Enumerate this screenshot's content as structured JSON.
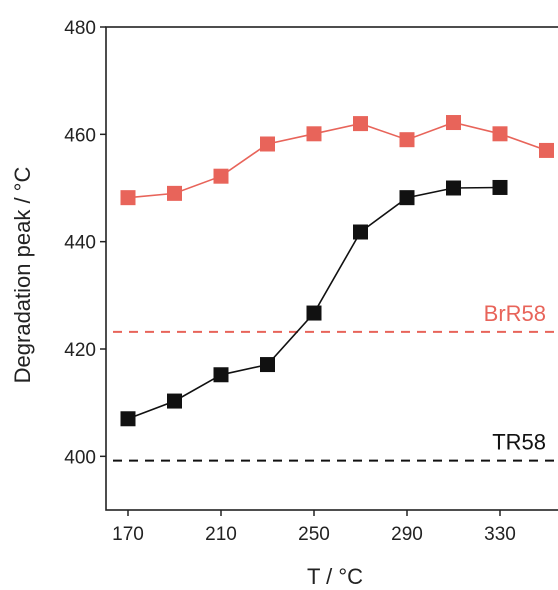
{
  "chart_data": {
    "type": "line",
    "title": "",
    "xlabel": "T / °C",
    "ylabel": "Degradation peak / °C",
    "xlim": [
      160,
      360
    ],
    "ylim": [
      390,
      480
    ],
    "xticks": [
      170,
      210,
      250,
      290,
      330
    ],
    "yticks": [
      400,
      420,
      440,
      460,
      480
    ],
    "grid": false,
    "series": [
      {
        "name": "",
        "color": "#e8645a",
        "marker": "square",
        "x": [
          170,
          190,
          210,
          230,
          250,
          270,
          290,
          310,
          330,
          350
        ],
        "y": [
          448.2,
          449.0,
          452.2,
          458.2,
          460.1,
          462.0,
          459.0,
          462.2,
          460.1,
          457.0
        ]
      },
      {
        "name": "",
        "color": "#111111",
        "marker": "square",
        "x": [
          170,
          190,
          210,
          230,
          250,
          270,
          290,
          310,
          330
        ],
        "y": [
          407.0,
          410.3,
          415.2,
          417.1,
          426.7,
          441.8,
          448.2,
          450.0,
          450.1
        ]
      }
    ],
    "reference_lines": [
      {
        "label": "BrR58",
        "y": 423.2,
        "color": "#e8645a",
        "style": "dashed"
      },
      {
        "label": "TR58",
        "y": 399.2,
        "color": "#111111",
        "style": "dashed"
      }
    ]
  }
}
